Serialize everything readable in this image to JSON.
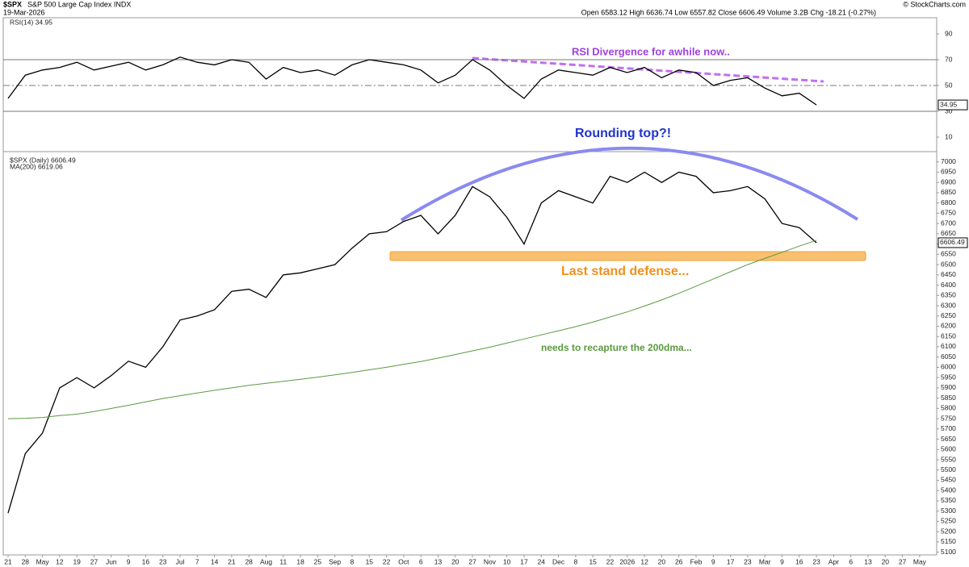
{
  "chart_data": {
    "type": "line",
    "title": "$SPX",
    "subtitle": "S&P 500 Large Cap Index INDX",
    "date": "19-Mar-2026",
    "quote": "Open 6583.12 High 6636.74 Low 6557.82 Close 6606.49 Volume 3.2B Chg -18.21 (-0.27%)",
    "credit": "© StockCharts.com",
    "categories": [
      "21",
      "28",
      "May",
      "12",
      "19",
      "27",
      "Jun",
      "9",
      "16",
      "23",
      "Jul",
      "7",
      "14",
      "21",
      "28",
      "Aug",
      "11",
      "18",
      "25",
      "Sep",
      "8",
      "15",
      "22",
      "Oct",
      "6",
      "13",
      "20",
      "27",
      "Nov",
      "10",
      "17",
      "24",
      "Dec",
      "8",
      "15",
      "22",
      "2026",
      "12",
      "20",
      "26",
      "Feb",
      "9",
      "17",
      "23",
      "Mar",
      "9",
      "16",
      "23",
      "Apr",
      "6",
      "13",
      "20",
      "27",
      "May"
    ],
    "series": [
      {
        "name": "$SPX (Daily) 6606.49",
        "color": "#000000",
        "values": [
          5290,
          5580,
          5680,
          5900,
          5950,
          5900,
          5960,
          6030,
          6000,
          6100,
          6230,
          6250,
          6280,
          6370,
          6380,
          6340,
          6450,
          6460,
          6480,
          6500,
          6580,
          6650,
          6660,
          6710,
          6740,
          6650,
          6740,
          6880,
          6830,
          6730,
          6600,
          6800,
          6860,
          6830,
          6800,
          6930,
          6900,
          6950,
          6900,
          6950,
          6930,
          6850,
          6860,
          6880,
          6820,
          6700,
          6680,
          6606.49,
          null,
          null,
          null,
          null,
          null,
          null
        ]
      },
      {
        "name": "MA(200) 6619.06",
        "color": "#5a9a40",
        "values": [
          5750,
          5752,
          5756,
          5765,
          5772,
          5785,
          5800,
          5815,
          5832,
          5848,
          5862,
          5875,
          5888,
          5900,
          5912,
          5922,
          5932,
          5942,
          5952,
          5963,
          5975,
          5988,
          6000,
          6015,
          6028,
          6045,
          6062,
          6080,
          6098,
          6118,
          6138,
          6158,
          6178,
          6198,
          6220,
          6245,
          6270,
          6298,
          6328,
          6360,
          6395,
          6430,
          6465,
          6500,
          6530,
          6560,
          6590,
          6619.06,
          null,
          null,
          null,
          null,
          null,
          null
        ]
      },
      {
        "name": "RSI(14) 34.95",
        "color": "#000000",
        "axis": "y2",
        "values": [
          40,
          58,
          62,
          64,
          68,
          62,
          65,
          68,
          62,
          66,
          72,
          68,
          66,
          70,
          68,
          55,
          64,
          60,
          62,
          58,
          66,
          70,
          68,
          66,
          62,
          52,
          58,
          70,
          62,
          50,
          40,
          55,
          62,
          60,
          58,
          64,
          60,
          64,
          56,
          62,
          60,
          50,
          54,
          56,
          48,
          42,
          44,
          34.95,
          null,
          null,
          null,
          null,
          null,
          null
        ]
      }
    ],
    "ylim": [
      5075,
      7050
    ],
    "yticks": [
      5100,
      5150,
      5200,
      5250,
      5300,
      5350,
      5400,
      5450,
      5500,
      5550,
      5600,
      5650,
      5700,
      5750,
      5800,
      5850,
      5900,
      5950,
      6000,
      6050,
      6100,
      6150,
      6200,
      6250,
      6300,
      6350,
      6400,
      6450,
      6500,
      6550,
      6600,
      6650,
      6700,
      6750,
      6800,
      6850,
      6900,
      6950,
      7000
    ],
    "y2lim": [
      0,
      100
    ],
    "y2ticks": [
      10,
      30,
      50,
      70,
      90
    ],
    "y2_levels": [
      70,
      50,
      30
    ],
    "log_scale": false,
    "grid": false,
    "annotations": [
      "RSI Divergence for awhile now..",
      "Rounding top?!",
      "Last stand defense...",
      "needs to recapture the 200dma..."
    ]
  }
}
